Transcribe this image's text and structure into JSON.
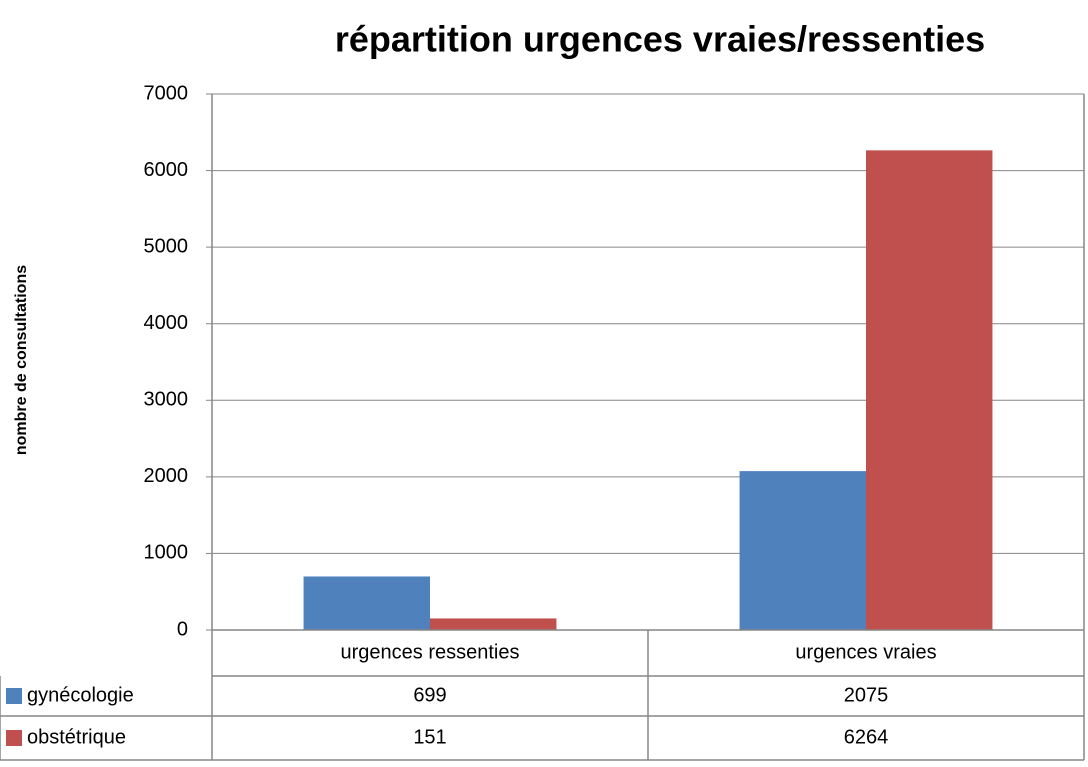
{
  "chart_data": {
    "type": "bar",
    "title": "répartition urgences vraies/ressenties",
    "y_label": "nombre de consultations",
    "categories": [
      "urgences ressenties",
      "urgences vraies"
    ],
    "series": [
      {
        "name": "gynécologie",
        "color": "#4f81bd",
        "values": [
          699,
          2075
        ]
      },
      {
        "name": "obstétrique",
        "color": "#c0504d",
        "values": [
          151,
          6264
        ]
      }
    ],
    "ylim": [
      0,
      7000
    ],
    "yticks": [
      0,
      1000,
      2000,
      3000,
      4000,
      5000,
      6000,
      7000
    ],
    "grid": true,
    "data_table": true
  }
}
